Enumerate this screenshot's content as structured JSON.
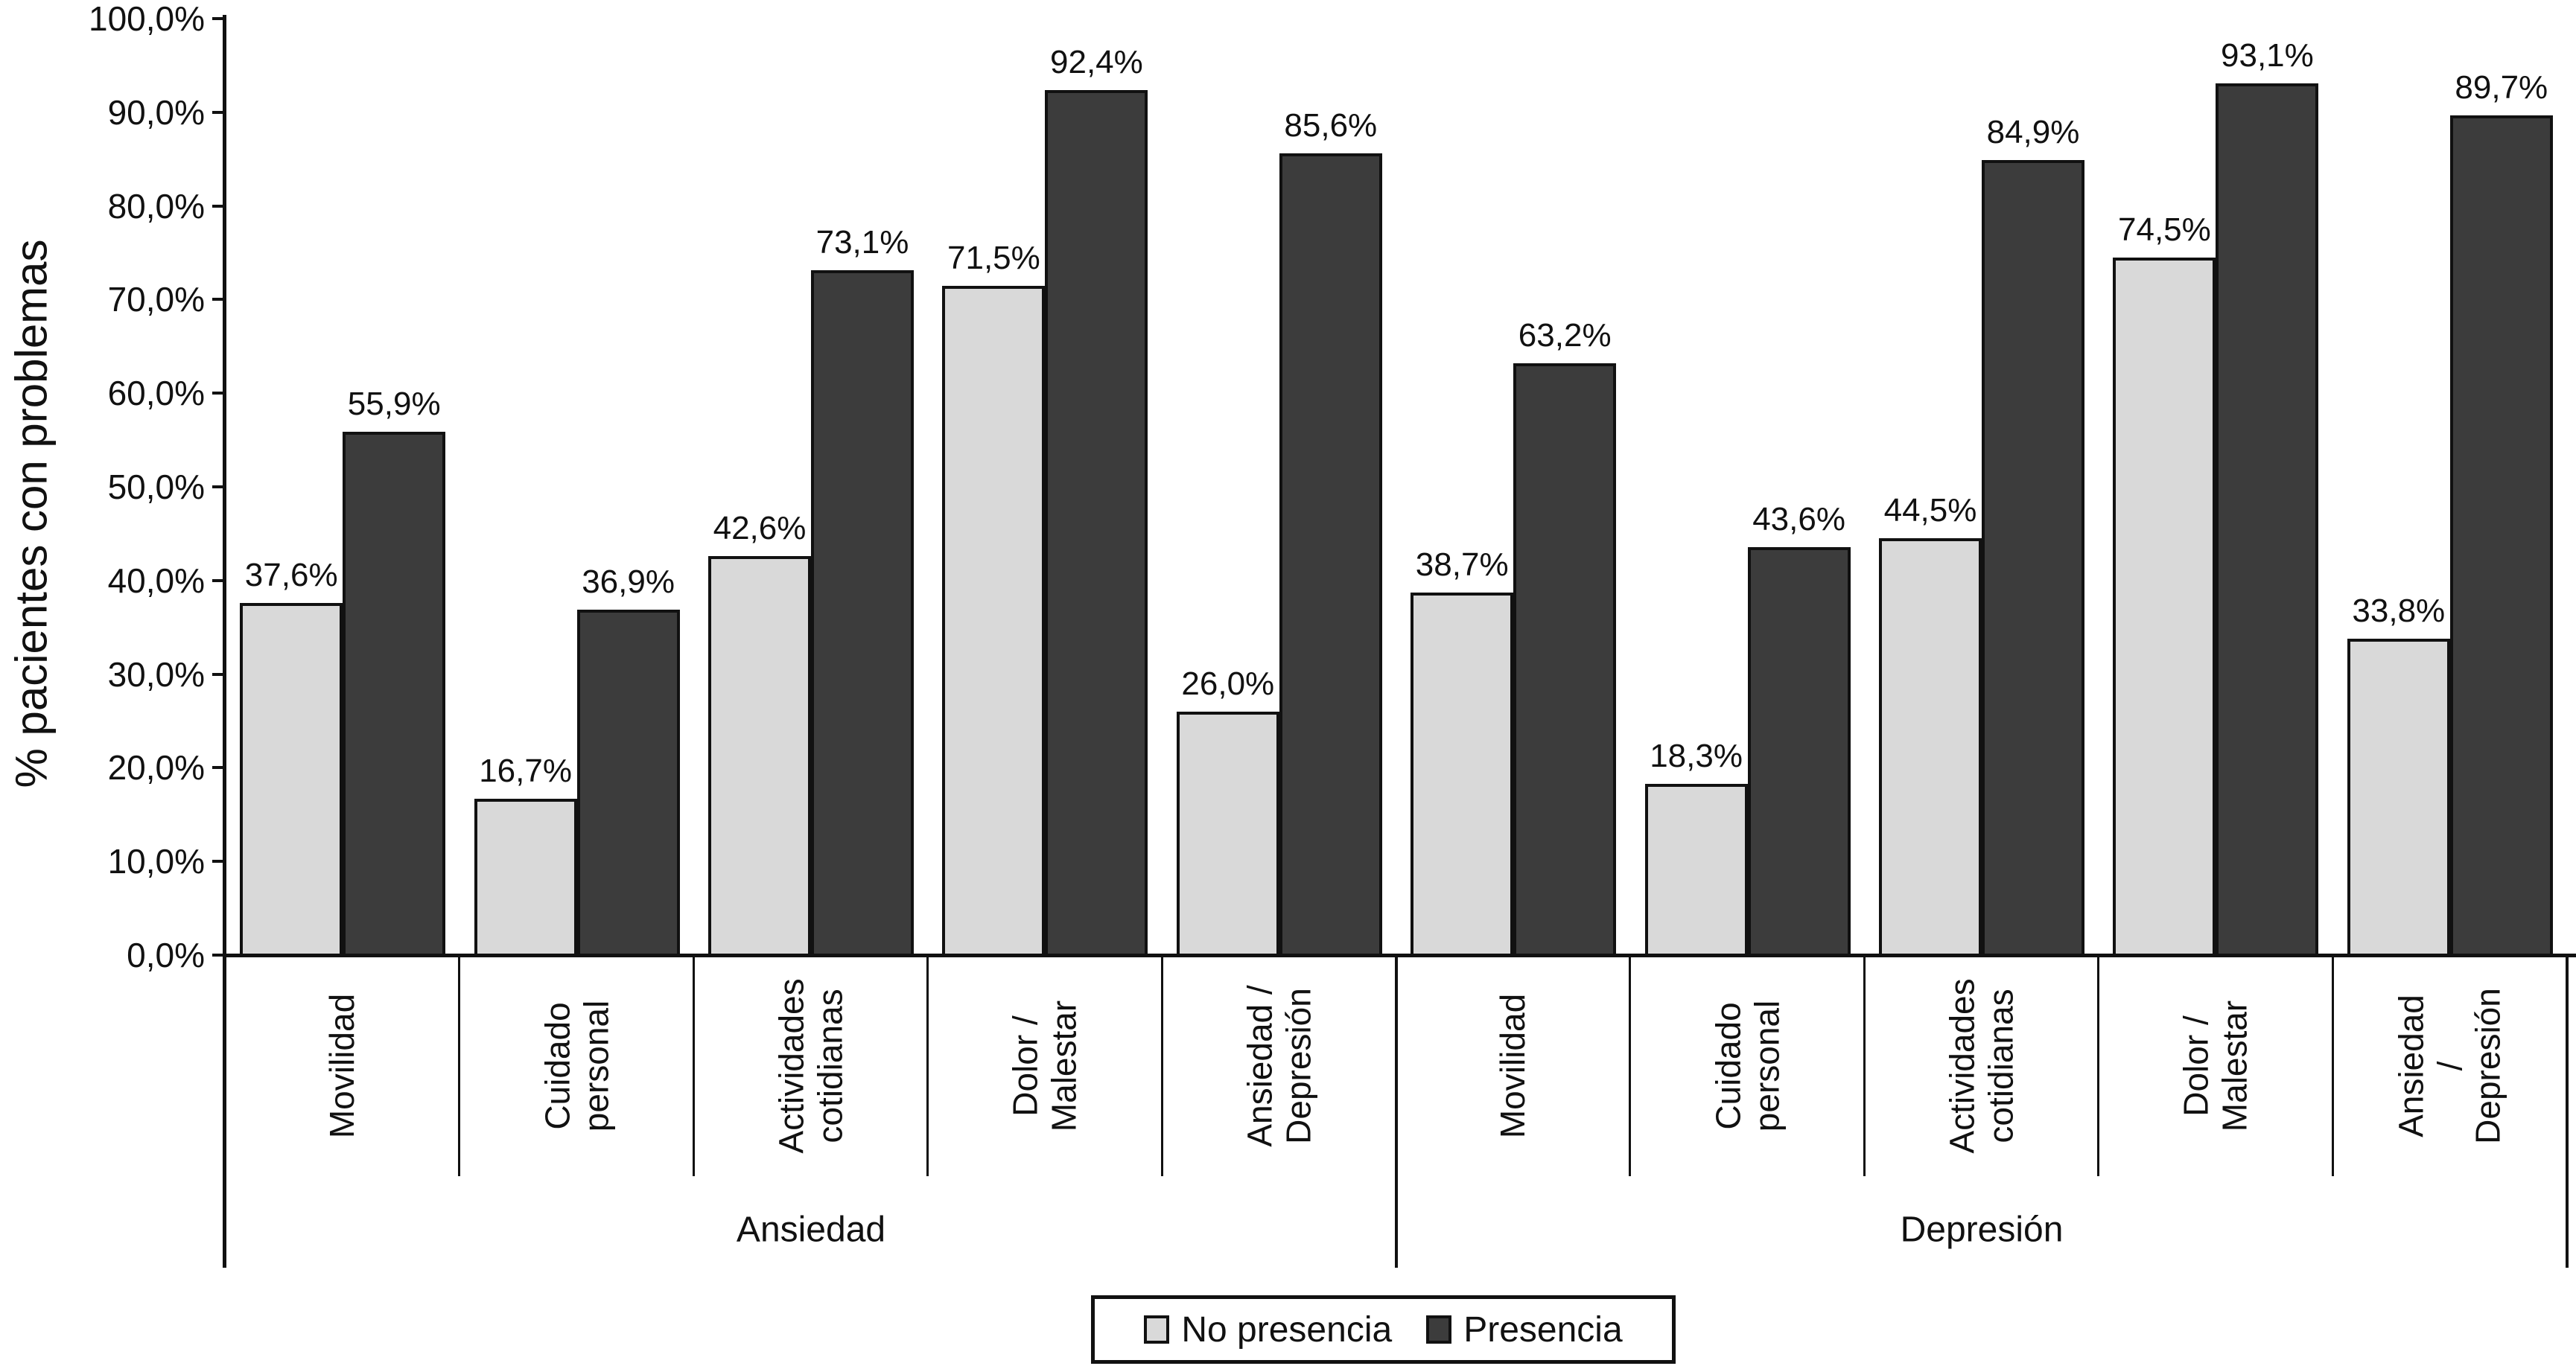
{
  "chart_data": {
    "type": "bar",
    "title": "",
    "ylabel": "% pacientes con problemas",
    "ylim": [
      0,
      100
    ],
    "grid": false,
    "legend_position": "bottom-center",
    "y_ticks": [
      "0,0%",
      "10,0%",
      "20,0%",
      "30,0%",
      "40,0%",
      "50,0%",
      "60,0%",
      "70,0%",
      "80,0%",
      "90,0%",
      "100,0%"
    ],
    "y_tick_values": [
      0,
      10,
      20,
      30,
      40,
      50,
      60,
      70,
      80,
      90,
      100
    ],
    "series_names": [
      "No presencia",
      "Presencia"
    ],
    "colors": {
      "no_presencia": "#d9d9d9",
      "presencia": "#3c3c3c",
      "line": "#111111"
    },
    "groups": [
      {
        "label": "Ansiedad",
        "categories": [
          {
            "label": "Movilidad",
            "no_presencia": "37,6%",
            "presencia": "55,9%"
          },
          {
            "label": "Cuidado\npersonal",
            "no_presencia": "16,7%",
            "presencia": "36,9%"
          },
          {
            "label": "Actividades\ncotidianas",
            "no_presencia": "42,6%",
            "presencia": "73,1%"
          },
          {
            "label": "Dolor /\nMalestar",
            "no_presencia": "71,5%",
            "presencia": "92,4%"
          },
          {
            "label": "Ansiedad /\nDepresión",
            "no_presencia": "26,0%",
            "presencia": "85,6%"
          }
        ]
      },
      {
        "label": "Depresión",
        "categories": [
          {
            "label": "Movilidad",
            "no_presencia": "38,7%",
            "presencia": "63,2%"
          },
          {
            "label": "Cuidado\npersonal",
            "no_presencia": "18,3%",
            "presencia": "43,6%"
          },
          {
            "label": "Actividades\ncotidianas",
            "no_presencia": "44,5%",
            "presencia": "84,9%"
          },
          {
            "label": "Dolor /\nMalestar",
            "no_presencia": "74,5%",
            "presencia": "93,1%"
          },
          {
            "label": "Ansiedad /\nDepresión",
            "no_presencia": "33,8%",
            "presencia": "89,7%"
          }
        ]
      }
    ],
    "legend": [
      {
        "name": "No presencia",
        "color": "#d9d9d9"
      },
      {
        "name": "Presencia",
        "color": "#3c3c3c"
      }
    ]
  }
}
